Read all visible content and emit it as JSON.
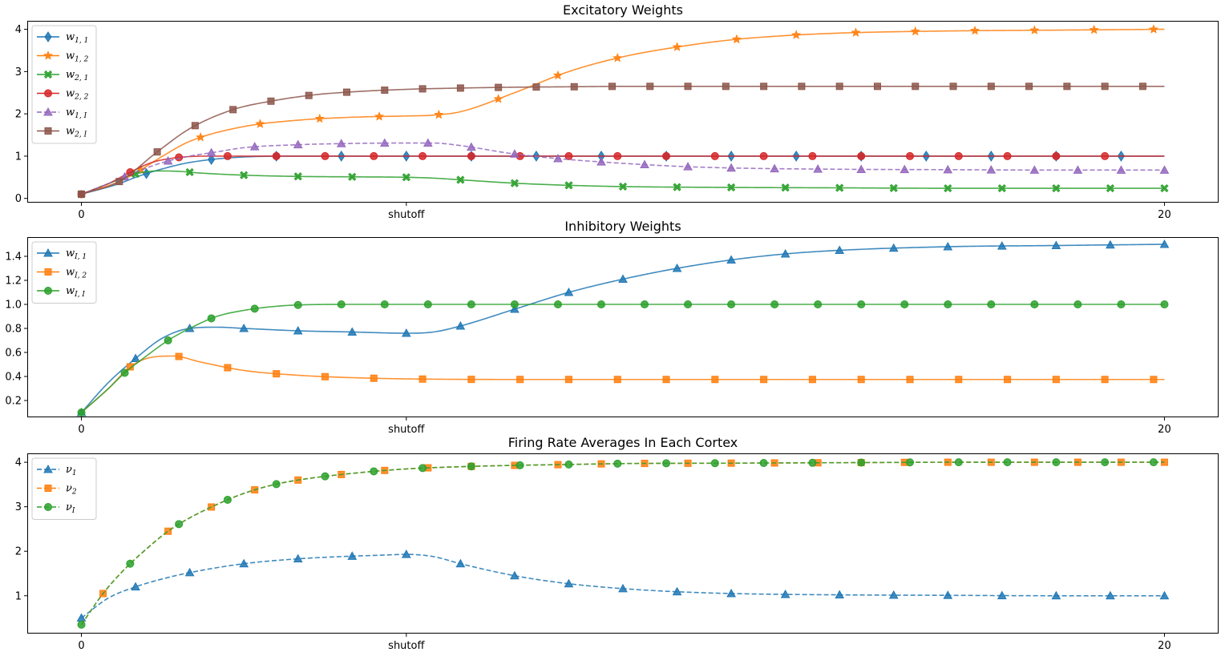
{
  "chart_data": [
    {
      "type": "line",
      "title": "Excitatory Weights",
      "xlabel": "",
      "ylabel": "",
      "xlim": [
        -1.0,
        21.0
      ],
      "ylim": [
        -0.1,
        4.2
      ],
      "x_ticks": [
        {
          "value": 0,
          "label": "0"
        },
        {
          "value": 6,
          "label": "shutoff"
        },
        {
          "value": 20,
          "label": "20"
        }
      ],
      "y_ticks": [
        0,
        1,
        2,
        3,
        4
      ],
      "legend_position": "upper-left",
      "series": [
        {
          "name": "w",
          "sub": "1, 1",
          "color": "#1f77b4",
          "marker": "diamond",
          "dash": false,
          "x": [
            0,
            0.7,
            1.0,
            1.5,
            2.0,
            3.0,
            4.0,
            5.0,
            6.0,
            7.0,
            8.0,
            9.0,
            10.0,
            12.0,
            14.0,
            16.0,
            18.0,
            20.0
          ],
          "y": [
            0.1,
            0.35,
            0.5,
            0.7,
            0.85,
            0.98,
            1.0,
            1.0,
            1.0,
            1.0,
            1.0,
            1.0,
            1.0,
            1.0,
            1.0,
            1.0,
            1.0,
            1.0
          ],
          "markers_x": [
            1.2,
            2.4,
            3.6,
            4.8,
            6.0,
            7.2,
            8.4,
            9.6,
            10.8,
            12.0,
            13.2,
            14.4,
            15.6,
            16.8,
            18.0,
            19.2
          ]
        },
        {
          "name": "w",
          "sub": "1, 2",
          "color": "#ff7f0e",
          "marker": "star",
          "dash": false,
          "x": [
            0,
            0.7,
            1.0,
            1.5,
            2.0,
            3.0,
            4.0,
            5.0,
            6.0,
            6.5,
            7.0,
            8.0,
            9.0,
            10.0,
            11.0,
            12.0,
            13.0,
            14.0,
            16.0,
            18.0,
            20.0
          ],
          "y": [
            0.1,
            0.4,
            0.6,
            1.0,
            1.35,
            1.7,
            1.85,
            1.92,
            1.95,
            1.97,
            2.05,
            2.5,
            3.0,
            3.35,
            3.58,
            3.75,
            3.85,
            3.91,
            3.96,
            3.98,
            4.0
          ],
          "markers_x": [
            1.1,
            2.2,
            3.3,
            4.4,
            5.5,
            6.6,
            7.7,
            8.8,
            9.9,
            11.0,
            12.1,
            13.2,
            14.3,
            15.4,
            16.5,
            17.6,
            18.7,
            19.8
          ]
        },
        {
          "name": "w",
          "sub": "2, 1",
          "color": "#2ca02c",
          "marker": "x",
          "dash": false,
          "x": [
            0,
            0.5,
            1.0,
            1.4,
            1.8,
            2.2,
            3.0,
            4.0,
            5.0,
            6.0,
            6.5,
            7.0,
            8.0,
            9.0,
            10.0,
            12.0,
            14.0,
            16.0,
            18.0,
            20.0
          ],
          "y": [
            0.1,
            0.35,
            0.58,
            0.65,
            0.64,
            0.6,
            0.55,
            0.52,
            0.51,
            0.5,
            0.48,
            0.44,
            0.36,
            0.31,
            0.28,
            0.26,
            0.25,
            0.24,
            0.24,
            0.24
          ],
          "markers_x": [
            0,
            1.0,
            2.0,
            3.0,
            4.0,
            5.0,
            6.0,
            7.0,
            8.0,
            9.0,
            10.0,
            11.0,
            12.0,
            13.0,
            14.0,
            15.0,
            16.0,
            17.0,
            18.0,
            19.0,
            20.0
          ]
        },
        {
          "name": "w",
          "sub": "2, 2",
          "color": "#d62728",
          "marker": "circle",
          "dash": false,
          "x": [
            0,
            0.5,
            0.9,
            1.3,
            1.8,
            2.4,
            3.0,
            4.0,
            6.0,
            10.0,
            15.0,
            20.0
          ],
          "y": [
            0.1,
            0.35,
            0.62,
            0.85,
            0.97,
            1.0,
            1.0,
            1.0,
            1.0,
            1.0,
            1.0,
            1.0
          ],
          "markers_x": [
            0,
            0.9,
            1.8,
            2.7,
            3.6,
            4.5,
            5.4,
            6.3,
            7.2,
            8.1,
            9.0,
            9.9,
            10.8,
            11.7,
            12.6,
            13.5,
            14.4,
            15.3,
            16.2,
            17.1,
            18.0,
            18.9
          ]
        },
        {
          "name": "w",
          "sub": "1, I",
          "color": "#9467bd",
          "marker": "triangle",
          "dash": true,
          "x": [
            0,
            0.6,
            1.0,
            1.5,
            2.0,
            2.5,
            3.0,
            4.0,
            5.0,
            6.0,
            6.5,
            7.0,
            8.0,
            9.0,
            10.0,
            11.0,
            12.0,
            14.0,
            16.0,
            18.0,
            20.0
          ],
          "y": [
            0.1,
            0.4,
            0.62,
            0.85,
            1.0,
            1.1,
            1.2,
            1.27,
            1.3,
            1.31,
            1.31,
            1.25,
            1.05,
            0.92,
            0.83,
            0.76,
            0.72,
            0.69,
            0.68,
            0.67,
            0.67
          ],
          "markers_x": [
            0.8,
            1.6,
            2.4,
            3.2,
            4.0,
            4.8,
            5.6,
            6.4,
            7.2,
            8.0,
            8.8,
            9.6,
            10.4,
            11.2,
            12.0,
            12.8,
            13.6,
            14.4,
            15.2,
            16.0,
            16.8,
            17.6,
            18.4,
            19.2,
            20.0
          ]
        },
        {
          "name": "w",
          "sub": "2, I",
          "color": "#8c564b",
          "marker": "square",
          "dash": false,
          "x": [
            0,
            0.7,
            1.4,
            2.0,
            2.8,
            3.5,
            4.3,
            5.0,
            6.0,
            7.0,
            8.0,
            9.0,
            10.0,
            12.0,
            14.0,
            16.0,
            18.0,
            20.0
          ],
          "y": [
            0.1,
            0.4,
            1.1,
            1.65,
            2.1,
            2.3,
            2.45,
            2.52,
            2.58,
            2.61,
            2.63,
            2.64,
            2.65,
            2.65,
            2.65,
            2.65,
            2.65,
            2.65
          ],
          "markers_x": [
            0,
            0.7,
            1.4,
            2.1,
            2.8,
            3.5,
            4.2,
            4.9,
            5.6,
            6.3,
            7.0,
            7.7,
            8.4,
            9.1,
            9.8,
            10.5,
            11.2,
            11.9,
            12.6,
            13.3,
            14.0,
            14.7,
            15.4,
            16.1,
            16.8,
            17.5,
            18.2,
            18.9,
            19.6
          ]
        }
      ]
    },
    {
      "type": "line",
      "title": "Inhibitory Weights",
      "xlabel": "",
      "ylabel": "",
      "xlim": [
        -1.0,
        21.0
      ],
      "ylim": [
        0.06,
        1.56
      ],
      "x_ticks": [
        {
          "value": 0,
          "label": "0"
        },
        {
          "value": 6,
          "label": "shutoff"
        },
        {
          "value": 20,
          "label": "20"
        }
      ],
      "y_ticks": [
        0.2,
        0.4,
        0.6,
        0.8,
        1.0,
        1.2,
        1.4
      ],
      "y_tick_labels": [
        "0.2",
        "0.4",
        "0.6",
        "0.8",
        "1.0",
        "1.2",
        "1.4"
      ],
      "legend_position": "upper-left",
      "series": [
        {
          "name": "w",
          "sub": "I, 1",
          "color": "#1f77b4",
          "marker": "triangle",
          "dash": false,
          "x": [
            0,
            0.5,
            1.0,
            1.5,
            2.0,
            2.5,
            3.0,
            4.0,
            5.0,
            6.0,
            6.5,
            7.0,
            8.0,
            9.0,
            10.0,
            11.0,
            12.0,
            13.0,
            14.0,
            16.0,
            18.0,
            20.0
          ],
          "y": [
            0.1,
            0.35,
            0.55,
            0.72,
            0.8,
            0.81,
            0.8,
            0.78,
            0.77,
            0.76,
            0.77,
            0.82,
            0.96,
            1.1,
            1.21,
            1.3,
            1.37,
            1.42,
            1.45,
            1.48,
            1.49,
            1.5
          ],
          "markers_x": [
            0,
            1.0,
            2.0,
            3.0,
            4.0,
            5.0,
            6.0,
            7.0,
            8.0,
            9.0,
            10.0,
            11.0,
            12.0,
            13.0,
            14.0,
            15.0,
            16.0,
            17.0,
            18.0,
            19.0,
            20.0
          ]
        },
        {
          "name": "w",
          "sub": "I, 2",
          "color": "#ff7f0e",
          "marker": "square",
          "dash": false,
          "x": [
            0,
            0.5,
            0.9,
            1.3,
            1.7,
            2.2,
            3.0,
            4.0,
            5.0,
            6.0,
            8.0,
            10.0,
            14.0,
            20.0
          ],
          "y": [
            0.1,
            0.3,
            0.48,
            0.56,
            0.57,
            0.52,
            0.45,
            0.41,
            0.39,
            0.38,
            0.375,
            0.375,
            0.375,
            0.375
          ],
          "markers_x": [
            0.9,
            1.8,
            2.7,
            3.6,
            4.5,
            5.4,
            6.3,
            7.2,
            8.1,
            9.0,
            9.9,
            10.8,
            11.7,
            12.6,
            13.5,
            14.4,
            15.3,
            16.2,
            17.1,
            18.0,
            18.9,
            19.8
          ]
        },
        {
          "name": "w",
          "sub": "I, I",
          "color": "#2ca02c",
          "marker": "circle",
          "dash": false,
          "x": [
            0,
            0.5,
            0.8,
            1.2,
            1.6,
            2.0,
            2.5,
            3.0,
            3.5,
            4.0,
            5.0,
            6.0,
            10.0,
            20.0
          ],
          "y": [
            0.1,
            0.3,
            0.43,
            0.57,
            0.7,
            0.8,
            0.9,
            0.95,
            0.98,
            0.995,
            1.0,
            1.0,
            1.0,
            1.0
          ],
          "markers_x": [
            0,
            0.8,
            1.6,
            2.4,
            3.2,
            4.0,
            4.8,
            5.6,
            6.4,
            7.2,
            8.0,
            8.8,
            9.6,
            10.4,
            11.2,
            12.0,
            12.8,
            13.6,
            14.4,
            15.2,
            16.0,
            16.8,
            17.6,
            18.4,
            19.2,
            20.0
          ]
        }
      ]
    },
    {
      "type": "line",
      "title": "Firing Rate Averages In Each Cortex",
      "xlabel": "",
      "ylabel": "",
      "xlim": [
        -1.0,
        21.0
      ],
      "ylim": [
        0.15,
        4.2
      ],
      "x_ticks": [
        {
          "value": 0,
          "label": "0"
        },
        {
          "value": 6,
          "label": "shutoff"
        },
        {
          "value": 20,
          "label": "20"
        }
      ],
      "y_ticks": [
        1,
        2,
        3,
        4
      ],
      "legend_position": "upper-left",
      "series": [
        {
          "name": "ν",
          "sub": "1",
          "color": "#1f77b4",
          "marker": "triangle",
          "dash": true,
          "x": [
            0,
            0.5,
            1.0,
            1.5,
            2.0,
            3.0,
            4.0,
            5.0,
            5.5,
            6.0,
            6.5,
            7.0,
            8.0,
            9.0,
            10.0,
            11.0,
            12.0,
            14.0,
            16.0,
            18.0,
            20.0
          ],
          "y": [
            0.5,
            0.95,
            1.2,
            1.38,
            1.52,
            1.72,
            1.83,
            1.89,
            1.91,
            1.93,
            1.88,
            1.72,
            1.45,
            1.27,
            1.16,
            1.09,
            1.05,
            1.02,
            1.01,
            1.0,
            1.0
          ],
          "markers_x": [
            0,
            1.0,
            2.0,
            3.0,
            4.0,
            5.0,
            6.0,
            7.0,
            8.0,
            9.0,
            10.0,
            11.0,
            12.0,
            13.0,
            14.0,
            15.0,
            16.0,
            17.0,
            18.0,
            19.0,
            20.0
          ]
        },
        {
          "name": "ν",
          "sub": "2",
          "color": "#ff7f0e",
          "marker": "square",
          "dash": true,
          "x": [
            0,
            0.4,
            0.8,
            1.2,
            1.6,
            2.0,
            2.5,
            3.0,
            3.5,
            4.0,
            5.0,
            6.0,
            7.0,
            8.0,
            9.0,
            10.0,
            12.0,
            14.0,
            16.0,
            18.0,
            20.0
          ],
          "y": [
            0.35,
            1.05,
            1.6,
            2.05,
            2.45,
            2.75,
            3.05,
            3.3,
            3.48,
            3.6,
            3.75,
            3.85,
            3.9,
            3.93,
            3.95,
            3.97,
            3.98,
            3.99,
            4.0,
            4.0,
            4.0
          ],
          "markers_x": [
            0.4,
            1.6,
            2.4,
            3.2,
            4.0,
            4.8,
            5.6,
            6.4,
            7.2,
            8.0,
            8.8,
            9.6,
            10.4,
            11.2,
            12.0,
            12.8,
            13.6,
            14.4,
            15.2,
            16.0,
            16.8,
            17.6,
            18.4,
            19.2,
            20.0
          ]
        },
        {
          "name": "ν",
          "sub": "I",
          "color": "#2ca02c",
          "marker": "circle",
          "dash": true,
          "x": [
            0,
            0.4,
            0.8,
            1.2,
            1.6,
            2.0,
            2.5,
            3.0,
            3.5,
            4.0,
            5.0,
            6.0,
            7.0,
            8.0,
            9.0,
            10.0,
            12.0,
            14.0,
            16.0,
            18.0,
            20.0
          ],
          "y": [
            0.35,
            1.05,
            1.6,
            2.05,
            2.45,
            2.75,
            3.05,
            3.3,
            3.48,
            3.6,
            3.75,
            3.85,
            3.9,
            3.93,
            3.95,
            3.97,
            3.98,
            3.99,
            4.0,
            4.0,
            4.0
          ],
          "markers_x": [
            0,
            0.9,
            1.8,
            2.7,
            3.6,
            4.5,
            5.4,
            6.3,
            7.2,
            8.1,
            9.0,
            9.9,
            10.8,
            11.7,
            12.6,
            13.5,
            14.4,
            15.3,
            16.2,
            17.1,
            18.0,
            18.9,
            19.8
          ]
        }
      ]
    }
  ]
}
